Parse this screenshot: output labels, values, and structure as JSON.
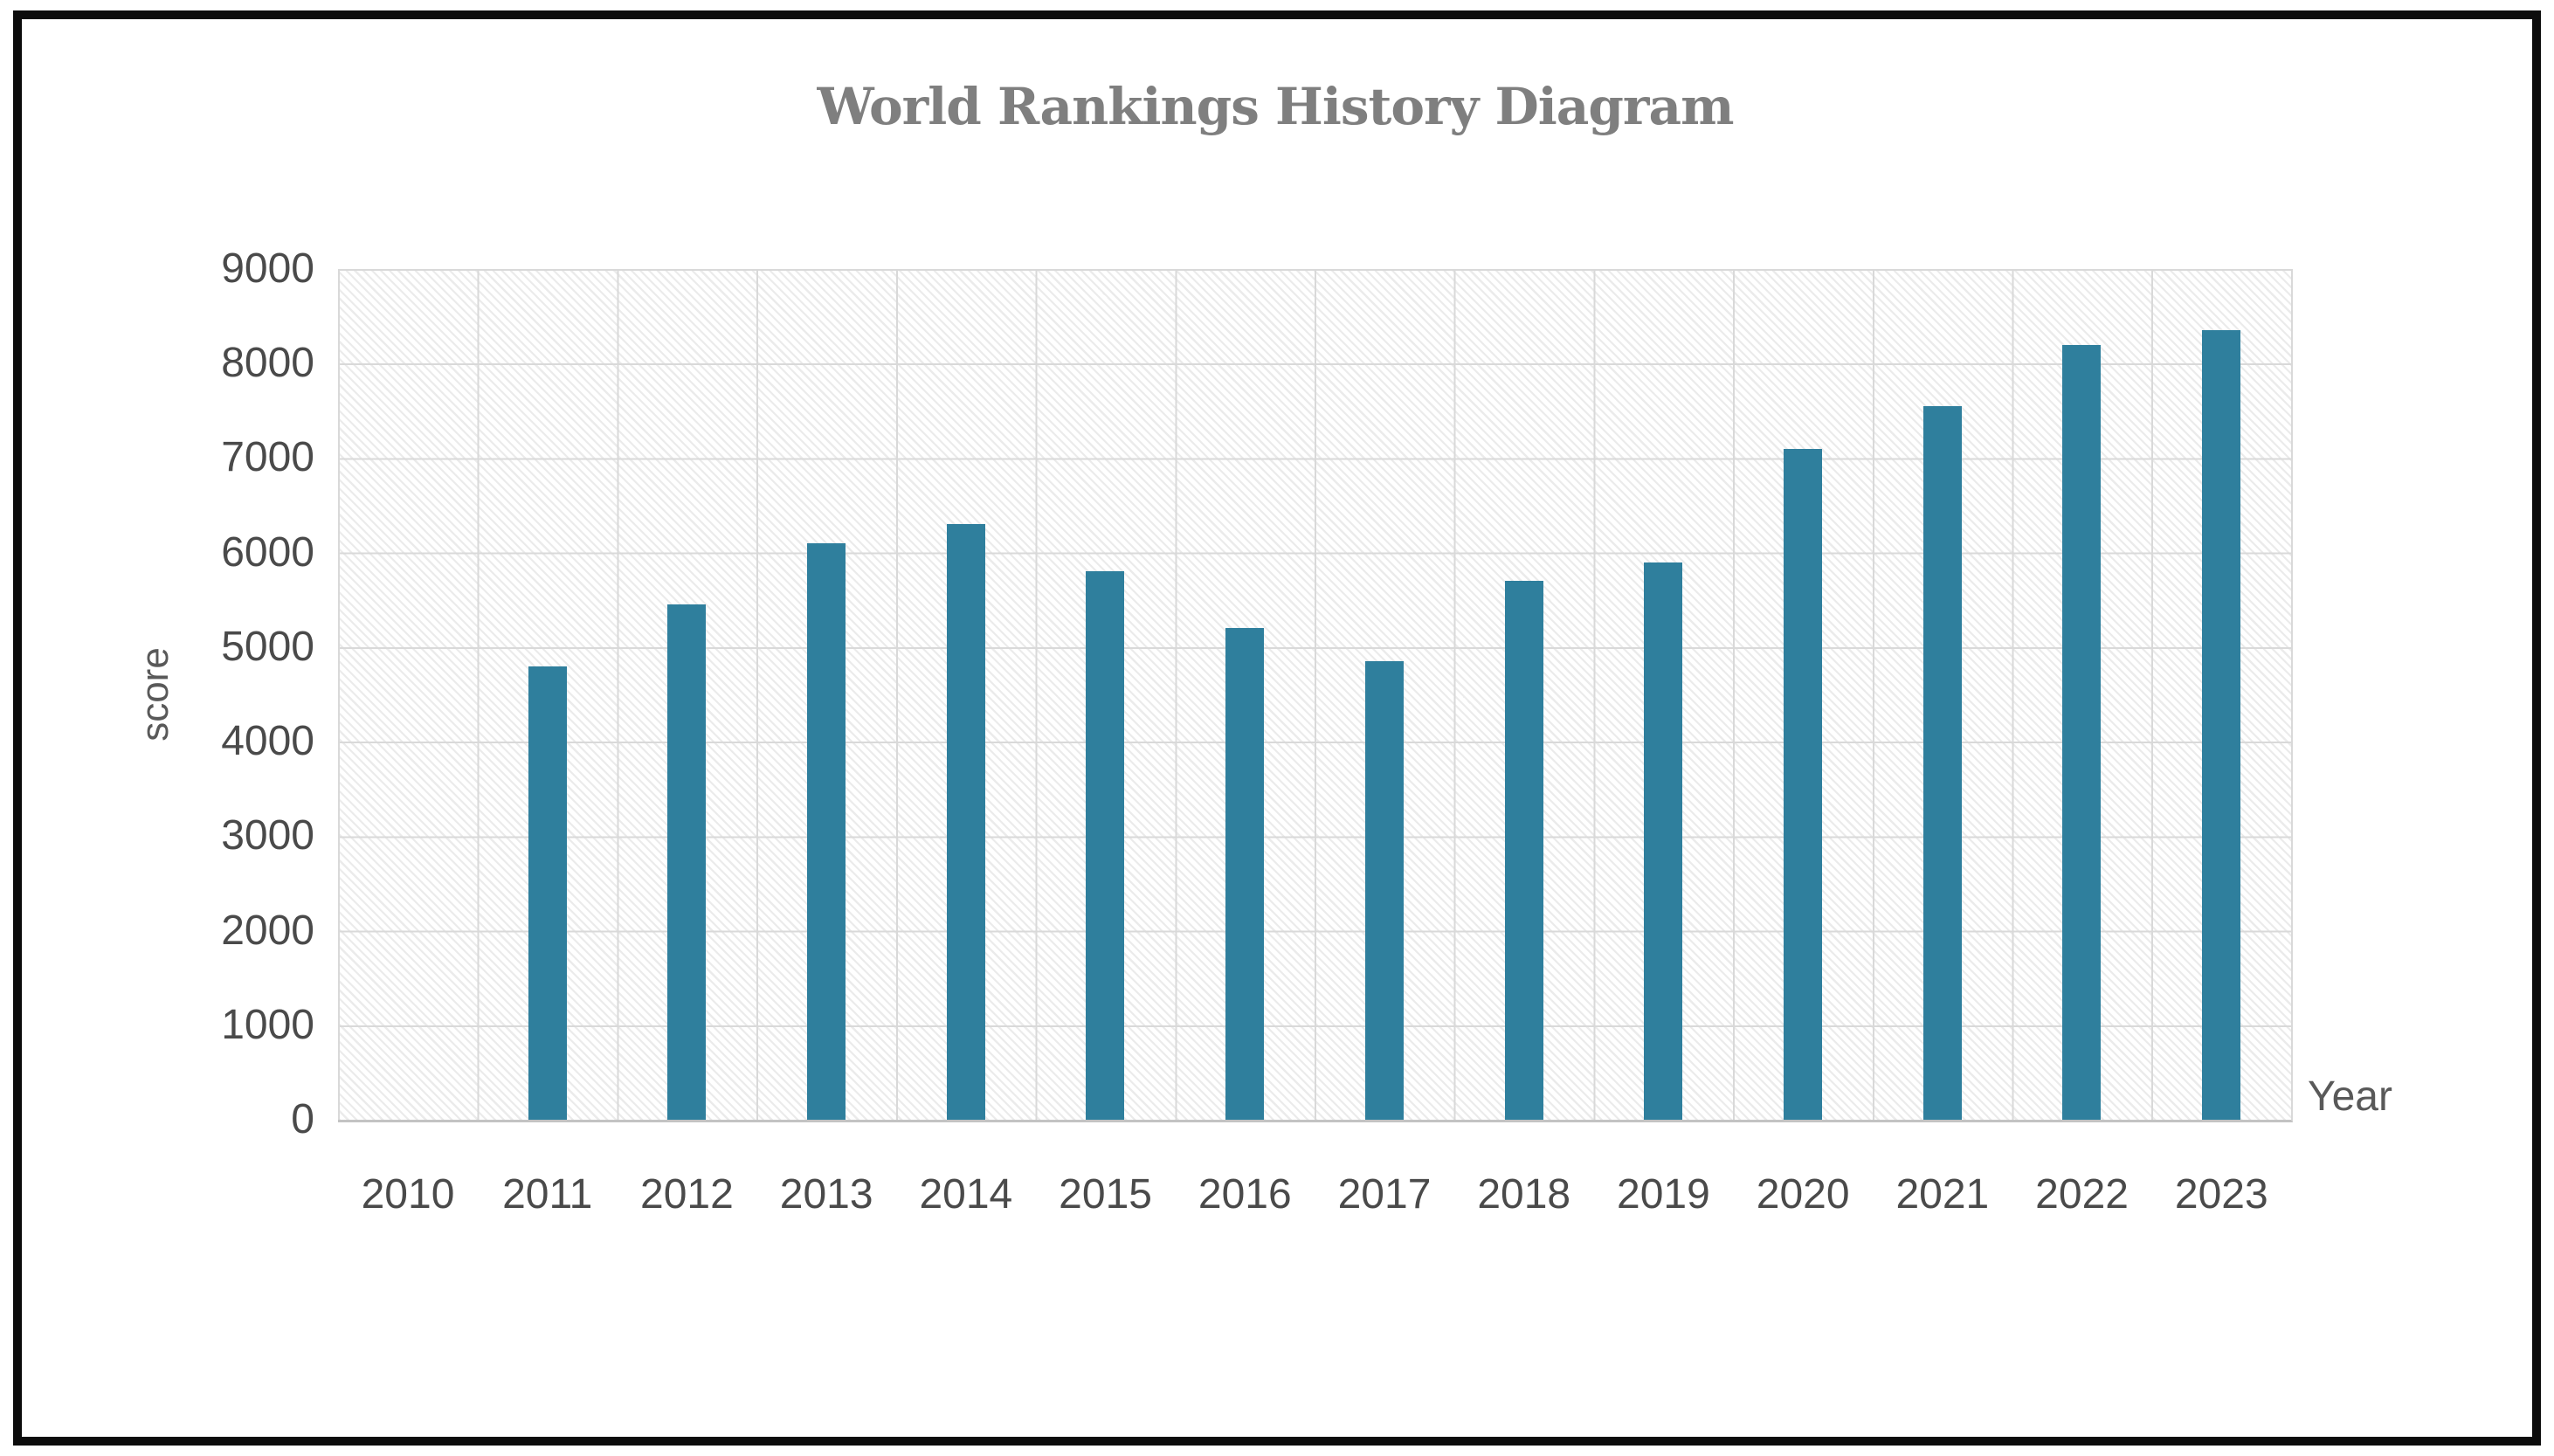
{
  "chart_data": {
    "type": "bar",
    "title": "World Rankings History Diagram",
    "xlabel": "Year",
    "ylabel": "score",
    "categories": [
      "2010",
      "2011",
      "2012",
      "2013",
      "2014",
      "2015",
      "2016",
      "2017",
      "2018",
      "2019",
      "2020",
      "2021",
      "2022",
      "2023"
    ],
    "values": [
      0,
      4800,
      5450,
      6100,
      6300,
      5800,
      5200,
      4850,
      5700,
      5900,
      7100,
      7550,
      8200,
      8350
    ],
    "ylim": [
      0,
      9000
    ],
    "ytick_step": 1000,
    "ytick_labels": [
      "0",
      "1000",
      "2000",
      "3000",
      "4000",
      "5000",
      "6000",
      "7000",
      "8000",
      "9000"
    ],
    "grid": "both",
    "legend": "none",
    "bar_color": "#2f7f9d",
    "gridline_color": "#d9d9d9",
    "title_color": "#7f7f7f",
    "tick_label_color": "#4a4a4a",
    "axis_label_color": "#595959",
    "plot_background": "white with light diagonal hatch"
  }
}
